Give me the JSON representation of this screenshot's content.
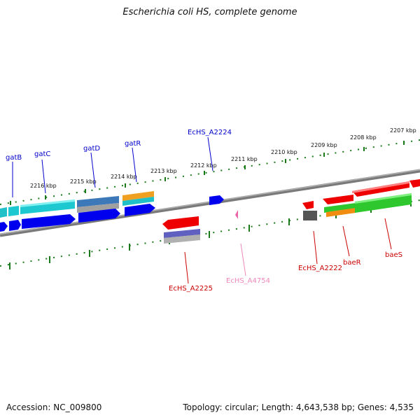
{
  "title": "Escherichia coli HS, complete genome",
  "footer": {
    "accession": "Accession: NC_009800",
    "stats": "Topology: circular; Length: 4,643,538 bp; Genes: 4,535"
  },
  "colors": {
    "backbone": "#808080",
    "ticks": "#1a7a1a",
    "forward_label": "#0000cc",
    "reverse_label": "#cc0000",
    "pseudo_label": "#ee88bb"
  },
  "kbp_ticks": [
    "2207 kbp",
    "2208 kbp",
    "2209 kbp",
    "2210 kbp",
    "2211 kbp",
    "2212 kbp",
    "2213 kbp",
    "2214 kbp",
    "2215 kbp",
    "2216 kbp"
  ],
  "gene_labels": {
    "gatB": "gatB",
    "gatC": "gatC",
    "gatD": "gatD",
    "gatR": "gatR",
    "EcHS_A2224": "EcHS_A2224",
    "EcHS_A2225": "EcHS_A2225",
    "EcHS_A4754": "EcHS_A4754",
    "EcHS_A2222": "EcHS_A2222",
    "baeR": "baeR",
    "baeS": "baeS"
  }
}
